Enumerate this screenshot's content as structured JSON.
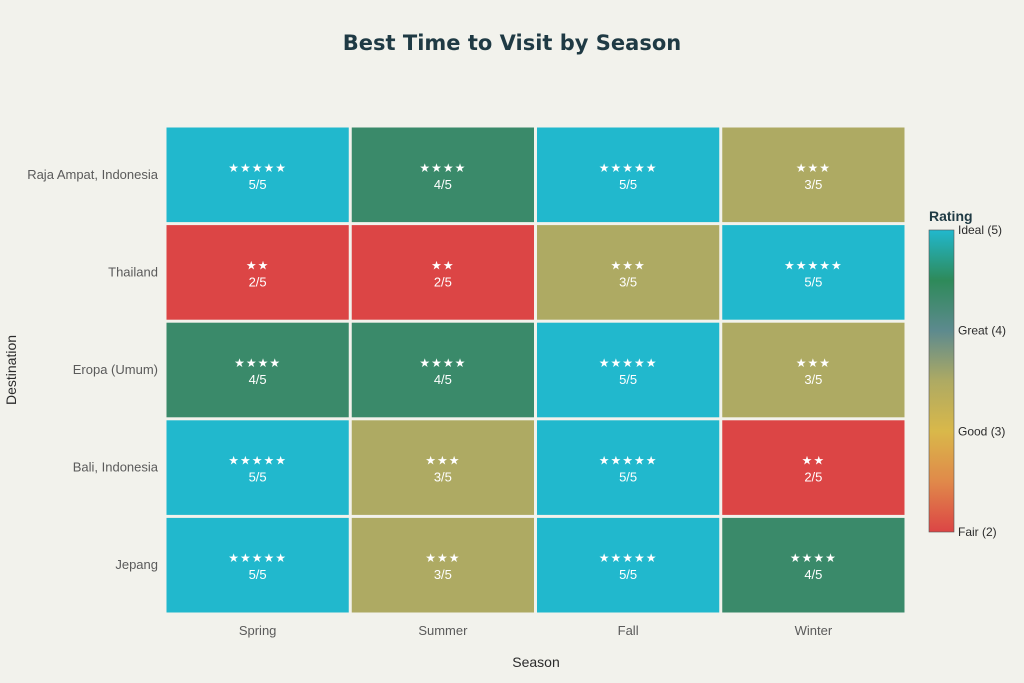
{
  "chart_data": {
    "type": "heatmap",
    "title": "Best Time to Visit by Season",
    "xlabel": "Season",
    "ylabel": "Destination",
    "x_categories": [
      "Spring",
      "Summer",
      "Fall",
      "Winter"
    ],
    "y_categories": [
      "Raja Ampat, Indonesia",
      "Thailand",
      "Eropa (Umum)",
      "Bali, Indonesia",
      "Jepang"
    ],
    "values": [
      [
        5,
        4,
        5,
        3
      ],
      [
        2,
        2,
        3,
        5
      ],
      [
        4,
        4,
        5,
        3
      ],
      [
        5,
        3,
        5,
        2
      ],
      [
        5,
        3,
        5,
        4
      ]
    ],
    "cell_text_suffix": "/5",
    "colorbar": {
      "title": "Rating",
      "range": [
        2,
        5
      ],
      "ticks": [
        {
          "value": 5,
          "label": "Ideal (5)"
        },
        {
          "value": 4,
          "label": "Great (4)"
        },
        {
          "value": 3,
          "label": "Good (3)"
        },
        {
          "value": 2,
          "label": "Fair (2)"
        }
      ]
    },
    "colors": {
      "5": "#21b8cd",
      "4": "#3a8a6a",
      "3": "#aeaa63",
      "2": "#dc4545"
    },
    "colorscale_stops": [
      "#dc4545",
      "#e0894a",
      "#d9b84a",
      "#aeaa63",
      "#5d8a8e",
      "#2e8a5a",
      "#21b8cd"
    ]
  }
}
